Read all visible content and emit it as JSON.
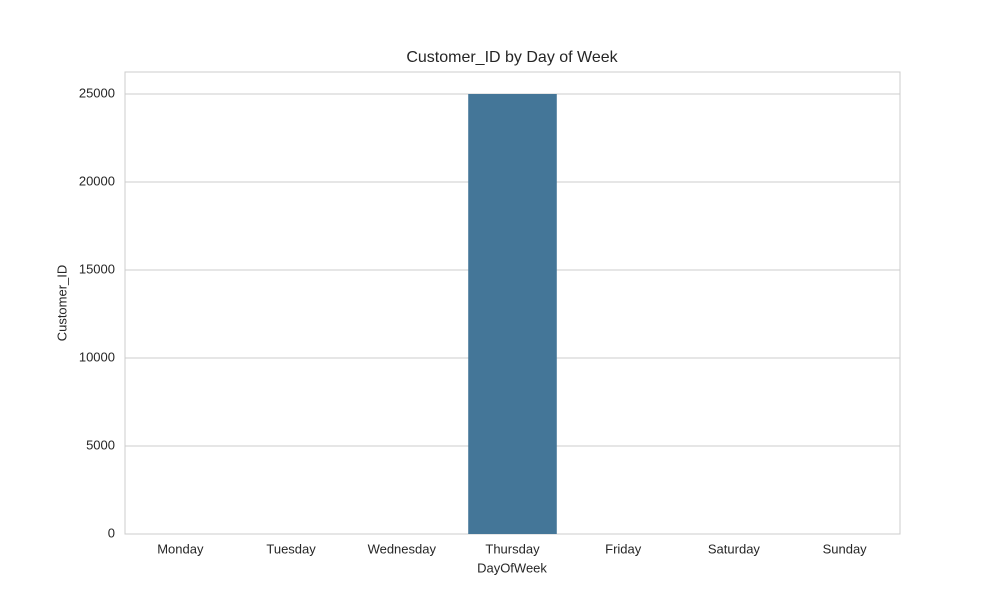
{
  "chart_data": {
    "type": "bar",
    "title": "Customer_ID by Day of Week",
    "x_label": "DayOfWeek",
    "y_label": "Customer_ID",
    "categories": [
      "Monday",
      "Tuesday",
      "Wednesday",
      "Thursday",
      "Friday",
      "Saturday",
      "Sunday"
    ],
    "values": [
      0,
      0,
      0,
      25000,
      0,
      0,
      0
    ],
    "color": "#447698",
    "ylim": [
      0,
      26250
    ],
    "yticks": [
      0,
      5000,
      10000,
      15000,
      20000,
      25000
    ],
    "grid": true
  }
}
